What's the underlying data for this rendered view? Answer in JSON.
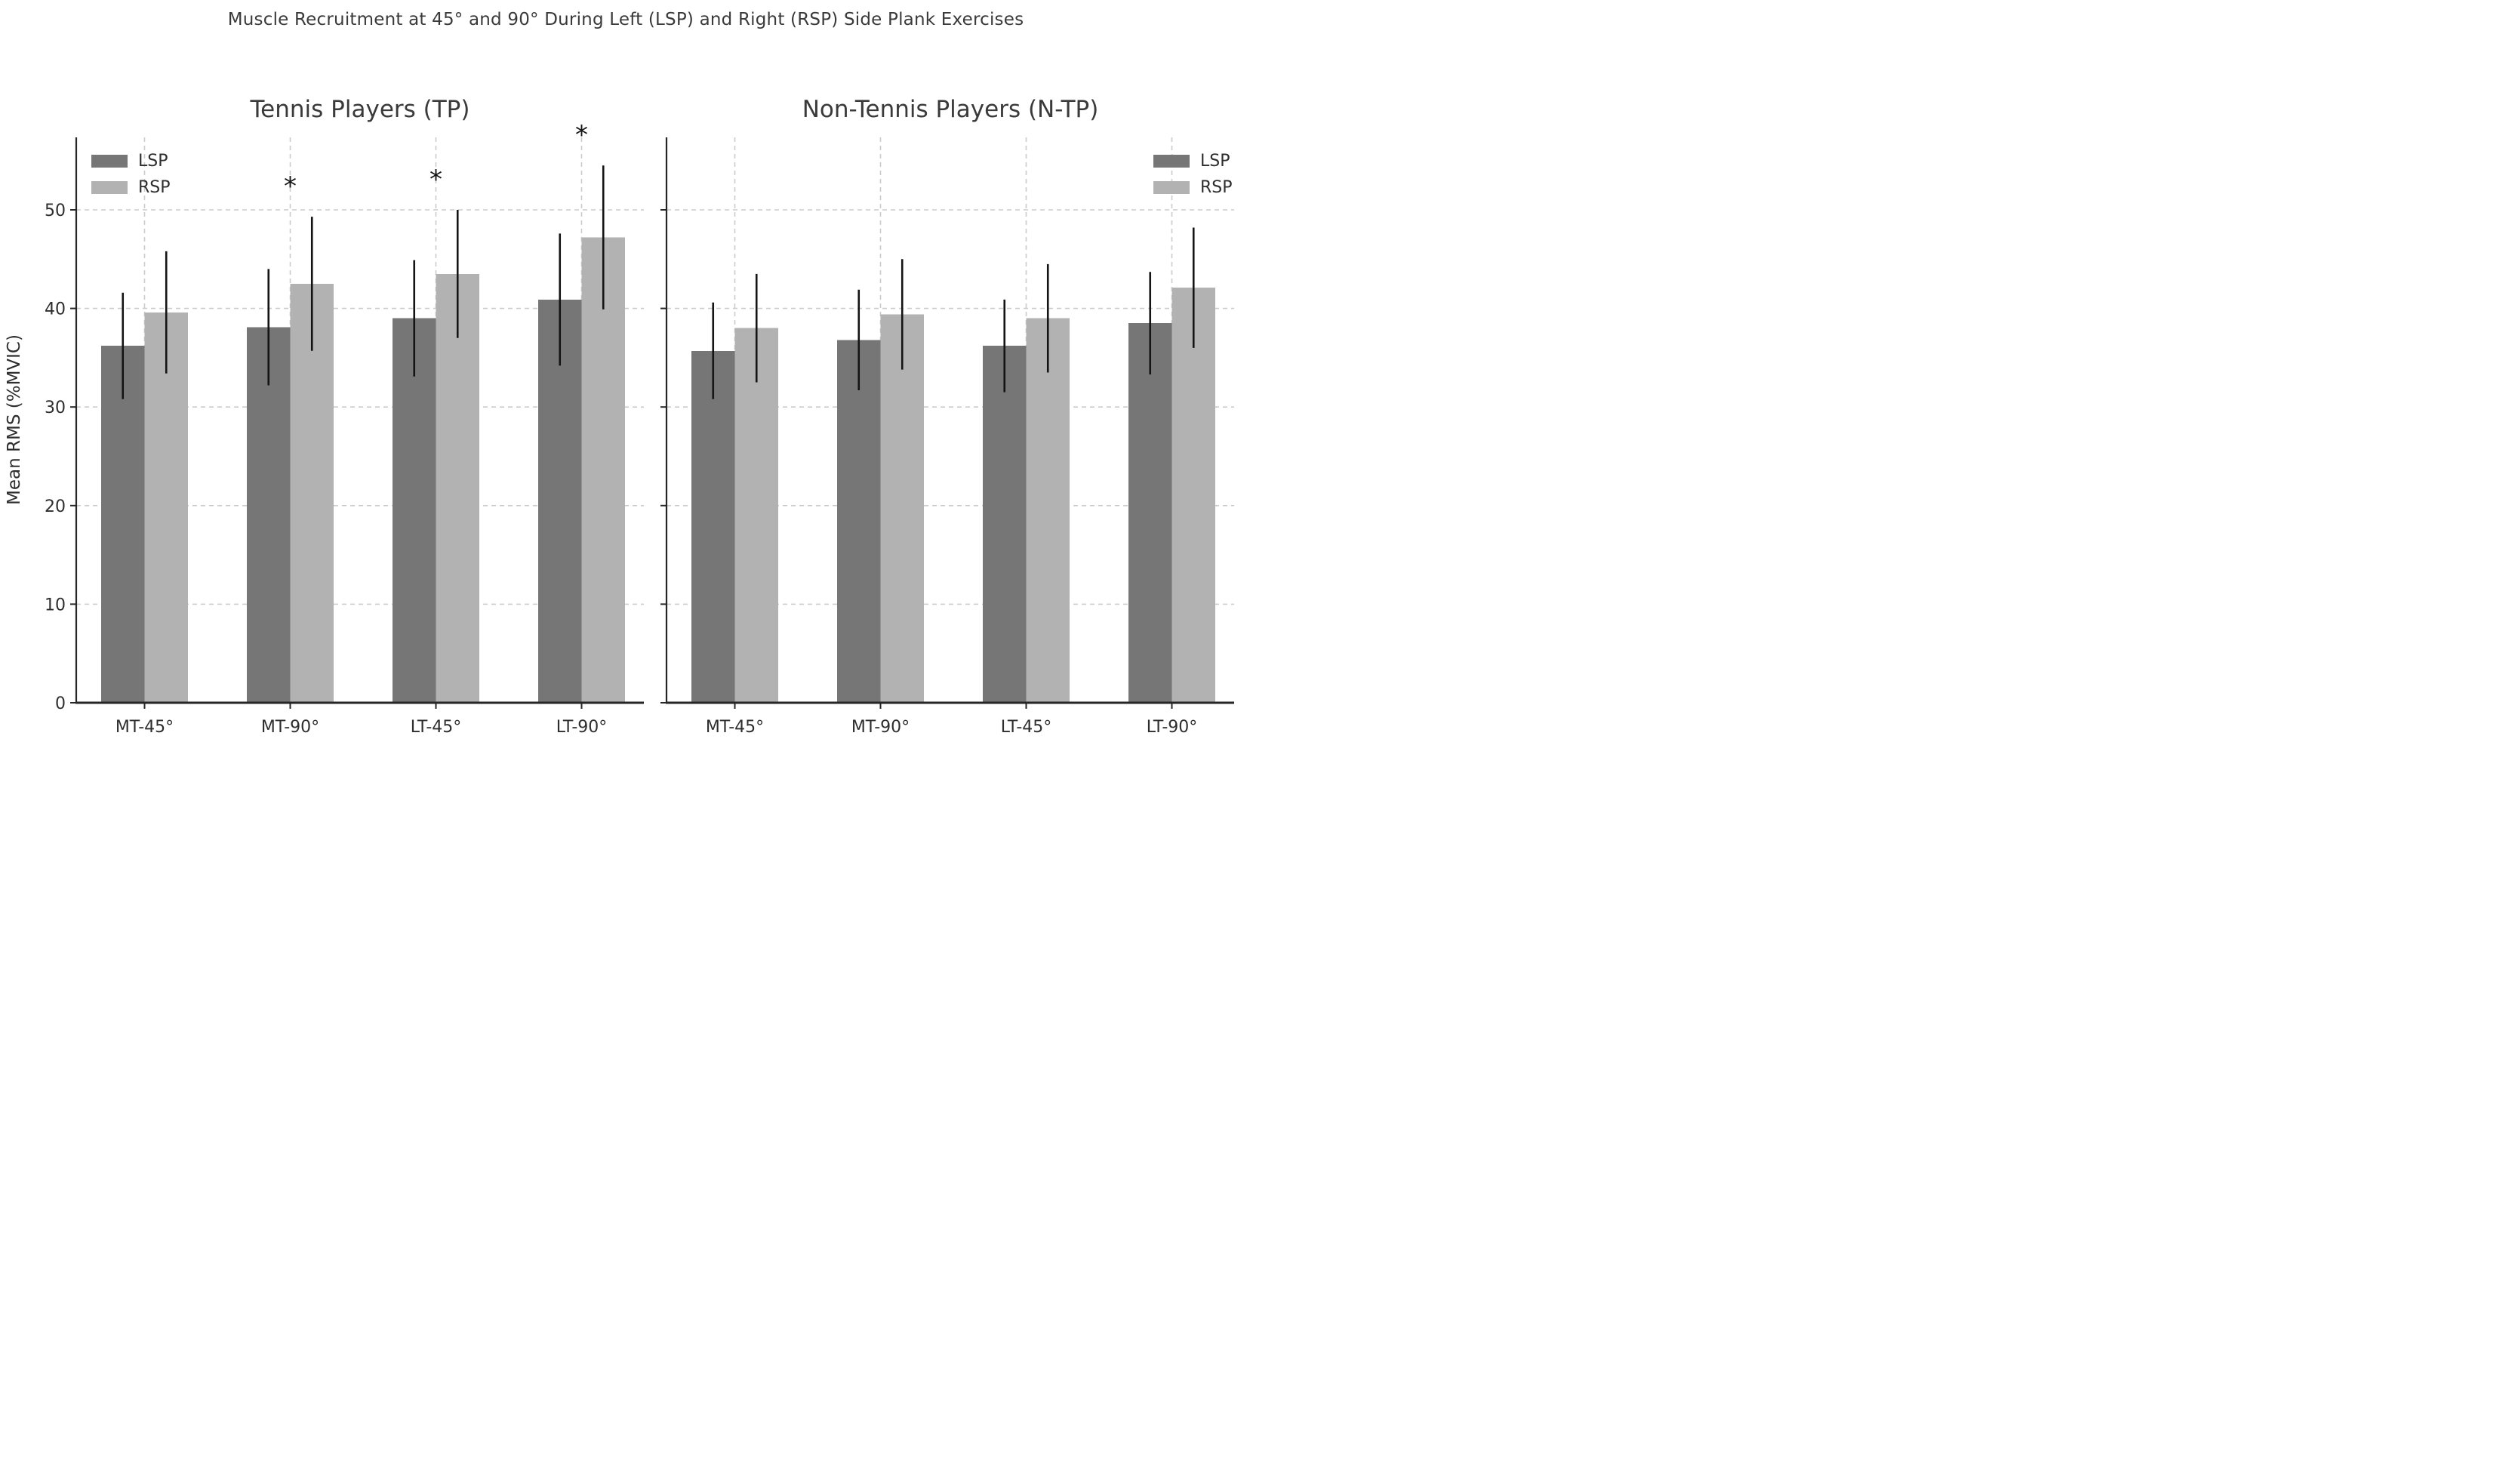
{
  "figure": {
    "suptitle": "Muscle Recruitment at 45° and 90° During Left (LSP) and Right (RSP) Side Plank Exercises",
    "background_color": "#ffffff",
    "text_color": "#3a3a3a"
  },
  "y_axis": {
    "label": "Mean RMS (%MVIC)",
    "ticks": [
      "0",
      "10",
      "20",
      "30",
      "40",
      "50"
    ],
    "range": [
      0,
      57.4
    ],
    "grid": "dashed"
  },
  "legend": {
    "entries": [
      {
        "label": "LSP",
        "color": "#767676"
      },
      {
        "label": "RSP",
        "color": "#b2b2b2"
      }
    ]
  },
  "significance_marker": "*",
  "chart_data": [
    {
      "type": "bar",
      "title": "Tennis Players (TP)",
      "categories": [
        "MT-45°",
        "MT-90°",
        "LT-45°",
        "LT-90°"
      ],
      "series": [
        {
          "name": "LSP",
          "color": "#767676",
          "values": [
            36.2,
            38.1,
            39.0,
            40.9
          ],
          "errors": [
            5.4,
            5.9,
            5.9,
            6.7
          ]
        },
        {
          "name": "RSP",
          "color": "#b2b2b2",
          "values": [
            39.6,
            42.5,
            43.5,
            47.2
          ],
          "errors": [
            6.2,
            6.8,
            6.5,
            7.3
          ]
        }
      ],
      "significant_categories": [
        "MT-90°",
        "LT-45°",
        "LT-90°"
      ],
      "legend_position": "upper-left"
    },
    {
      "type": "bar",
      "title": "Non-Tennis Players (N-TP)",
      "categories": [
        "MT-45°",
        "MT-90°",
        "LT-45°",
        "LT-90°"
      ],
      "series": [
        {
          "name": "LSP",
          "color": "#767676",
          "values": [
            35.7,
            36.8,
            36.2,
            38.5
          ],
          "errors": [
            4.9,
            5.1,
            4.7,
            5.2
          ]
        },
        {
          "name": "RSP",
          "color": "#b2b2b2",
          "values": [
            38.0,
            39.4,
            39.0,
            42.1
          ],
          "errors": [
            5.5,
            5.6,
            5.5,
            6.1
          ]
        }
      ],
      "significant_categories": [],
      "legend_position": "upper-right"
    }
  ]
}
